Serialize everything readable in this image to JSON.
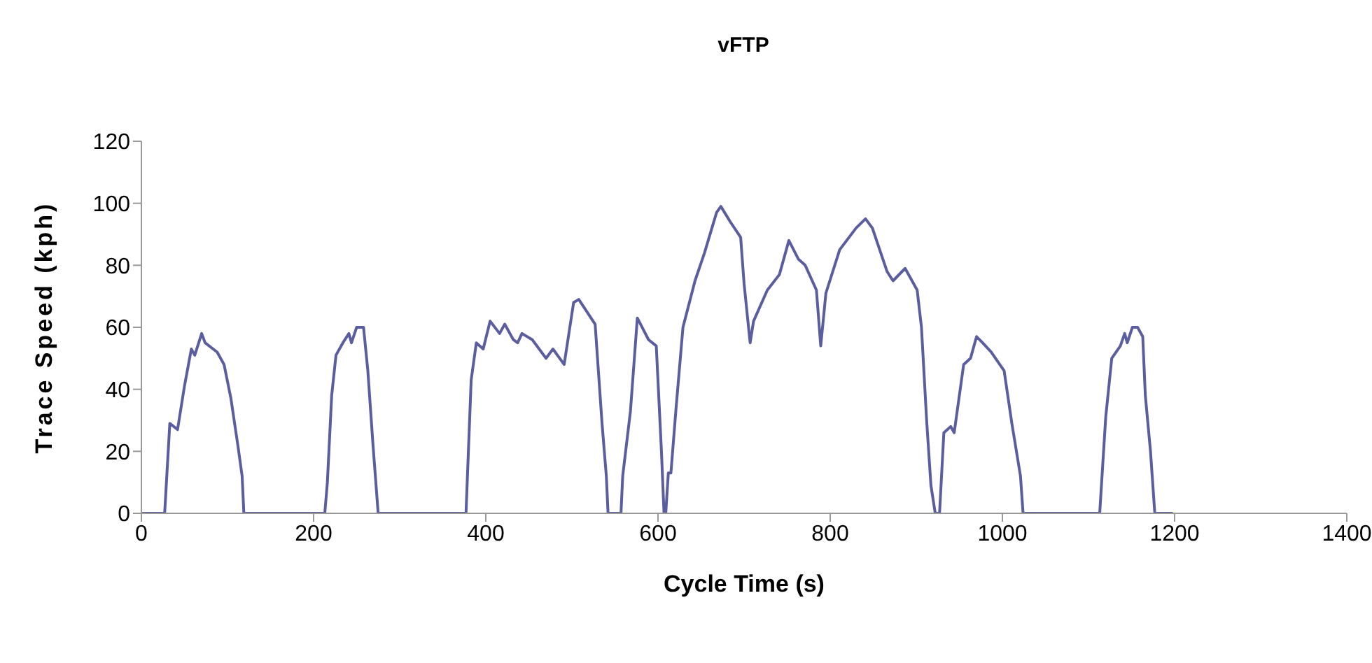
{
  "chart_data": {
    "type": "line",
    "title": "vFTP",
    "xlabel": "Cycle Time (s)",
    "ylabel": "Trace Speed (kph)",
    "xlim": [
      0,
      1400
    ],
    "xticks": [
      0,
      200,
      400,
      600,
      800,
      1000,
      1200,
      1400
    ],
    "ylim": [
      0,
      120
    ],
    "yticks": [
      0,
      20,
      40,
      60,
      80,
      100,
      120
    ],
    "marker": "none",
    "line_style": "solid",
    "series": [
      {
        "color": "#5b5e9e",
        "x": [
          0,
          27,
          33,
          42,
          50,
          58,
          62,
          70,
          74,
          88,
          96,
          104,
          112,
          117,
          119,
          213,
          216,
          221,
          226,
          234,
          241,
          244,
          250,
          258,
          263,
          269,
          275,
          377,
          383,
          389,
          397,
          405,
          416,
          422,
          432,
          437,
          442,
          454,
          470,
          478,
          491,
          502,
          508,
          527,
          535,
          540,
          542,
          557,
          559,
          568,
          576,
          589,
          598,
          604,
          607,
          609,
          612,
          615,
          621,
          629,
          643,
          654,
          668,
          673,
          684,
          696,
          700,
          707,
          711,
          727,
          741,
          752,
          763,
          771,
          784,
          789,
          795,
          811,
          830,
          841,
          849,
          866,
          873,
          887,
          901,
          906,
          912,
          917,
          922,
          927,
          932,
          940,
          944,
          955,
          963,
          970,
          977,
          987,
          1002,
          1011,
          1021,
          1024,
          1113,
          1120,
          1127,
          1137,
          1142,
          1145,
          1151,
          1157,
          1163,
          1166,
          1172,
          1177,
          1198
        ],
        "values": [
          0,
          0,
          29,
          27,
          41,
          53,
          51,
          58,
          55,
          52,
          48,
          37,
          22,
          12,
          0,
          0,
          10,
          38,
          51,
          55,
          58,
          55,
          60,
          60,
          46,
          22,
          0,
          0,
          43,
          55,
          53,
          62,
          58,
          61,
          56,
          55,
          58,
          56,
          50,
          53,
          48,
          68,
          69,
          61,
          29,
          12,
          0,
          0,
          12,
          33,
          63,
          56,
          54,
          20,
          0,
          0,
          13,
          13,
          34,
          60,
          75,
          84,
          97,
          99,
          94,
          89,
          74,
          55,
          62,
          72,
          77,
          88,
          82,
          80,
          72,
          54,
          71,
          85,
          92,
          95,
          92,
          78,
          75,
          79,
          72,
          60,
          30,
          9,
          0,
          0,
          26,
          28,
          26,
          48,
          50,
          57,
          55,
          52,
          46,
          29,
          12,
          0,
          0,
          31,
          50,
          54,
          58,
          55,
          60,
          60,
          57,
          38,
          20,
          0,
          0
        ]
      }
    ]
  }
}
